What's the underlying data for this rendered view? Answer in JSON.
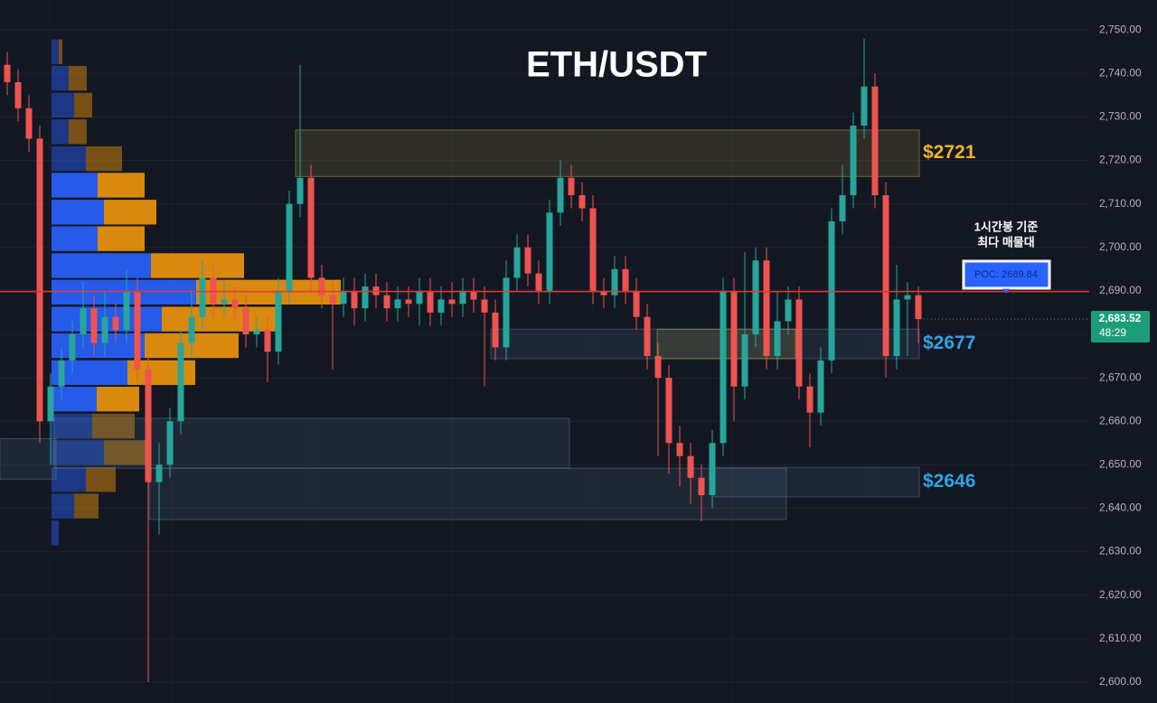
{
  "chart_data": {
    "type": "candlestick",
    "title": "ETH/USDT",
    "ylim": [
      2595.2,
      2756.9
    ],
    "yticks": [
      {
        "value": 2600,
        "label": "2,600.00"
      },
      {
        "value": 2610,
        "label": "2,610.00"
      },
      {
        "value": 2620,
        "label": "2,620.00"
      },
      {
        "value": 2630,
        "label": "2,630.00"
      },
      {
        "value": 2640,
        "label": "2,640.00"
      },
      {
        "value": 2650,
        "label": "2,650.00"
      },
      {
        "value": 2660,
        "label": "2,660.00"
      },
      {
        "value": 2670,
        "label": "2,670.00"
      },
      {
        "value": 2680,
        "label": "2,680.00"
      },
      {
        "value": 2690,
        "label": "2,690.00"
      },
      {
        "value": 2700,
        "label": "2,700.00"
      },
      {
        "value": 2710,
        "label": "2,710.00"
      },
      {
        "value": 2720,
        "label": "2,720.00"
      },
      {
        "value": 2730,
        "label": "2,730.00"
      },
      {
        "value": 2740,
        "label": "2,740.00"
      },
      {
        "value": 2750,
        "label": "2,750.00"
      }
    ],
    "grid": true,
    "up_color": "#26a69a",
    "down_color": "#ef5350",
    "open": [
      2742,
      2738,
      2732,
      2725,
      2660,
      2668,
      2674,
      2680,
      2686,
      2678,
      2684,
      2681,
      2690,
      2672,
      2646,
      2650,
      2660,
      2678,
      2684,
      2693,
      2687,
      2688,
      2686,
      2680,
      2681,
      2676,
      2690,
      2710,
      2716,
      2693,
      2689,
      2687,
      2690,
      2686,
      2691,
      2689,
      2686,
      2688,
      2687,
      2690,
      2685,
      2688,
      2687,
      2690,
      2688,
      2685,
      2677,
      2693,
      2700,
      2694,
      2690,
      2708,
      2716,
      2712,
      2709,
      2690,
      2689,
      2695,
      2690,
      2684,
      2675,
      2670,
      2655,
      2652,
      2647,
      2643,
      2655,
      2690,
      2668,
      2680,
      2697,
      2675,
      2683,
      2688,
      2668,
      2662,
      2674,
      2706,
      2712,
      2728,
      2737,
      2712,
      2675,
      2688,
      2689
    ],
    "high": [
      2745,
      2741,
      2735,
      2728,
      2671,
      2677,
      2683,
      2692,
      2689,
      2690,
      2687,
      2695,
      2693,
      2675,
      2655,
      2663,
      2681,
      2690,
      2697,
      2696,
      2692,
      2691,
      2689,
      2684,
      2684,
      2693,
      2713,
      2742,
      2719,
      2696,
      2692,
      2693,
      2693,
      2694,
      2694,
      2692,
      2691,
      2691,
      2693,
      2693,
      2691,
      2692,
      2693,
      2693,
      2691,
      2688,
      2697,
      2703,
      2703,
      2697,
      2711,
      2720,
      2719,
      2715,
      2712,
      2693,
      2698,
      2698,
      2693,
      2687,
      2678,
      2673,
      2659,
      2655,
      2650,
      2658,
      2693,
      2693,
      2699,
      2700,
      2700,
      2690,
      2691,
      2691,
      2671,
      2677,
      2709,
      2719,
      2731,
      2748,
      2740,
      2715,
      2696,
      2692,
      2691
    ],
    "low": [
      2735,
      2729,
      2722,
      2655,
      2650,
      2665,
      2671,
      2677,
      2675,
      2675,
      2678,
      2678,
      2669,
      2600,
      2634,
      2647,
      2657,
      2675,
      2681,
      2684,
      2684,
      2683,
      2677,
      2677,
      2669,
      2673,
      2687,
      2707,
      2690,
      2686,
      2672,
      2684,
      2682,
      2683,
      2686,
      2683,
      2683,
      2684,
      2682,
      2682,
      2682,
      2684,
      2684,
      2685,
      2668,
      2674,
      2674,
      2690,
      2691,
      2687,
      2687,
      2705,
      2709,
      2706,
      2687,
      2686,
      2686,
      2687,
      2681,
      2672,
      2652,
      2648,
      2645,
      2641,
      2637,
      2640,
      2652,
      2660,
      2665,
      2677,
      2672,
      2672,
      2680,
      2665,
      2654,
      2659,
      2671,
      2703,
      2709,
      2725,
      2709,
      2670,
      2672,
      2675,
      2678
    ],
    "close": [
      2738,
      2732,
      2725,
      2660,
      2668,
      2674,
      2680,
      2686,
      2678,
      2684,
      2681,
      2690,
      2672,
      2646,
      2650,
      2660,
      2678,
      2684,
      2693,
      2687,
      2688,
      2686,
      2680,
      2681,
      2676,
      2690,
      2710,
      2716,
      2693,
      2689,
      2687,
      2690,
      2686,
      2691,
      2689,
      2686,
      2688,
      2687,
      2690,
      2685,
      2688,
      2687,
      2690,
      2688,
      2685,
      2677,
      2693,
      2700,
      2694,
      2690,
      2708,
      2716,
      2712,
      2709,
      2690,
      2689,
      2695,
      2690,
      2684,
      2675,
      2670,
      2655,
      2652,
      2647,
      2643,
      2655,
      2690,
      2668,
      2680,
      2697,
      2675,
      2683,
      2688,
      2668,
      2662,
      2674,
      2706,
      2712,
      2728,
      2737,
      2712,
      2675,
      2688,
      2689,
      2683.52
    ],
    "last_price": {
      "value": 2683.52,
      "label": "2,683.52"
    },
    "countdown": "48:29",
    "poc": {
      "value": 2689.84,
      "label": "POC: 2689.84"
    },
    "annotation": [
      "1시간봉 기준",
      "최다 매물대"
    ],
    "zones": [
      {
        "label": "$2721",
        "top": 2727,
        "bottom": 2716.3,
        "color": "#c8b84a",
        "label_color": "#f0b429"
      },
      {
        "label": "$2677",
        "top": 2681.2,
        "bottom": 2674.4,
        "color": "#5d7fa3",
        "label_color": "#2fa4e7"
      },
      {
        "top": 2681.2,
        "bottom": 2674.4,
        "color": "#c8b84a"
      },
      {
        "top": 2660.7,
        "bottom": 2649.2,
        "color": "#5d7fa3"
      },
      {
        "top": 2656,
        "bottom": 2646.7,
        "color": "#5d7fa3"
      },
      {
        "top": 2649.2,
        "bottom": 2637.4,
        "color": "#5d7fa3"
      },
      {
        "label": "$2646",
        "top": 2649.4,
        "bottom": 2642.6,
        "color": "#5d7fa3",
        "label_color": "#2fa4e7"
      }
    ],
    "volume_profile": {
      "levels": [
        2745.0,
        2738.9,
        2732.7,
        2726.6,
        2720.4,
        2714.3,
        2708.1,
        2702.0,
        2695.8,
        2689.7,
        2683.5,
        2677.4,
        2671.2,
        2665.1,
        2658.9,
        2652.8,
        2646.6,
        2640.5,
        2634.3
      ],
      "buy": [
        8,
        19,
        25,
        19,
        38,
        51,
        58,
        51,
        110,
        160,
        122,
        103,
        84,
        50,
        45,
        58,
        38,
        25,
        8
      ],
      "sell": [
        4,
        20,
        20,
        20,
        40,
        52,
        58,
        52,
        103,
        160,
        127,
        104,
        75,
        47,
        47,
        50,
        33,
        27,
        0
      ],
      "buy_color": "#2962ff",
      "sell_color": "#f0960c"
    }
  }
}
